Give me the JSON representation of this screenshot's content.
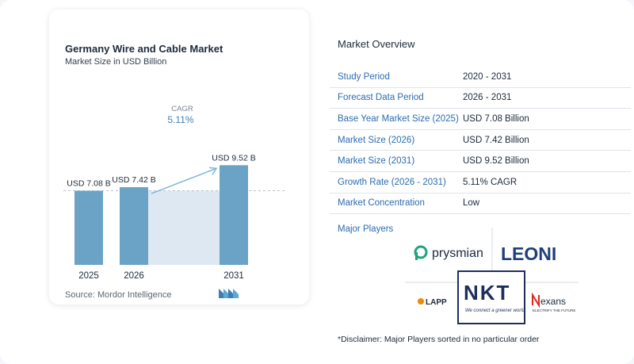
{
  "chart_data": {
    "type": "bar",
    "title": "Germany Wire and Cable Market",
    "subtitle": "Market Size in USD Billion",
    "categories": [
      "2025",
      "2026",
      "2031"
    ],
    "values": [
      7.08,
      7.42,
      9.52
    ],
    "value_labels": [
      "USD 7.08 B",
      "USD 7.42 B",
      "USD 9.52 B"
    ],
    "cagr_label": "CAGR",
    "cagr_value": "5.11%",
    "grid": false,
    "colors": {
      "bar": "#6aa3c6",
      "bar_top": "#5e95bb",
      "band": "#dde8f2",
      "arrow": "#7fb6d8",
      "dashed": "#b8c2cc"
    }
  },
  "source": "Source:  Mordor Intelligence",
  "overview": {
    "title": "Market Overview",
    "rows": [
      {
        "key": "Study Period",
        "value": "2020 - 2031"
      },
      {
        "key": "Forecast Data Period",
        "value": "2026 - 2031"
      },
      {
        "key": "Base Year Market Size (2025)",
        "value": "USD 7.08 Billion"
      },
      {
        "key": "Market Size (2026)",
        "value": "USD 7.42 Billion"
      },
      {
        "key": "Market Size (2031)",
        "value": "USD 9.52 Billion"
      },
      {
        "key": "Growth Rate (2026 - 2031)",
        "value": "5.11% CAGR"
      },
      {
        "key": "Market Concentration",
        "value": "Low"
      }
    ]
  },
  "players": {
    "title": "Major Players",
    "logos": [
      "prysmian",
      "LEONI",
      "NKT",
      "LAPP",
      "nexans"
    ],
    "nkt_tagline": "We connect a greener world",
    "nexans_tagline": "ELECTRIFY THE FUTURE"
  },
  "disclaimer": "*Disclaimer: Major Players sorted in no particular order"
}
